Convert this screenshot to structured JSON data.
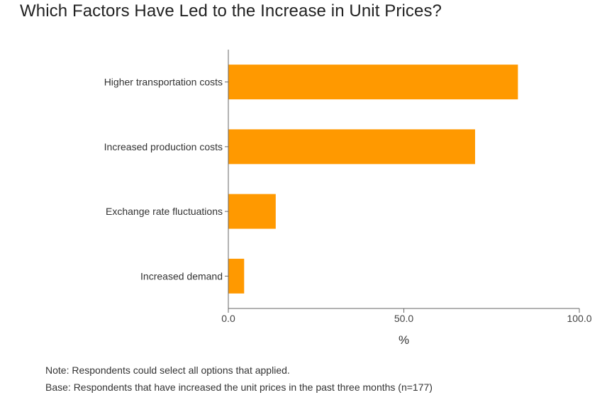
{
  "chart_data": {
    "type": "bar",
    "orientation": "horizontal",
    "title": "Which Factors Have Led to the Increase in Unit Prices?",
    "categories": [
      "Higher transportation costs",
      "Increased production costs",
      "Exchange rate fluctuations",
      "Increased demand"
    ],
    "values": [
      82.5,
      70.3,
      13.5,
      4.5
    ],
    "xlabel": "%",
    "ylabel": "",
    "xlim": [
      0,
      100
    ],
    "xticks": [
      "0.0",
      "50.0",
      "100.0"
    ],
    "grid": false,
    "bar_color": "#FF9900",
    "axis_color": "#666666"
  },
  "notes": {
    "note": "Note: Respondents could select all options that applied.",
    "base": "Base: Respondents that have increased the unit prices in the past three months (n=177)"
  }
}
